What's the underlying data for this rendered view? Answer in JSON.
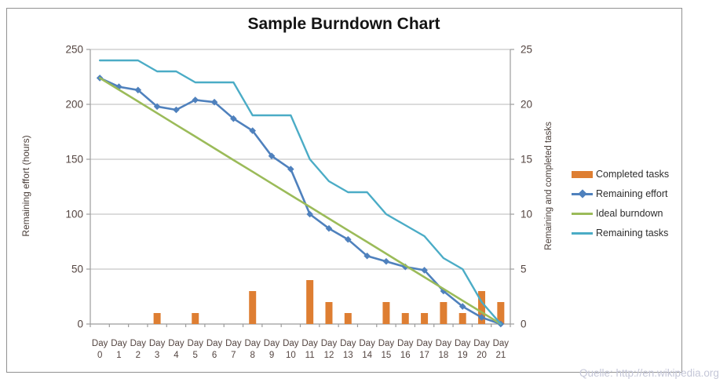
{
  "chart": {
    "title": "Sample Burndown Chart",
    "left_axis": {
      "title": "Remaining effort (hours)",
      "ticks": [
        250,
        200,
        150,
        100,
        50,
        0
      ]
    },
    "right_axis": {
      "title": "Remaining and  completed tasks",
      "ticks": [
        25,
        20,
        15,
        10,
        5,
        0
      ]
    },
    "legend": [
      {
        "label": "Completed tasks",
        "type": "bar",
        "color": "#de7e32"
      },
      {
        "label": "Remaining effort",
        "type": "line-diamond",
        "color": "#4f81bd"
      },
      {
        "label": "Ideal burndown",
        "type": "line",
        "color": "#9bbb59"
      },
      {
        "label": "Remaining tasks",
        "type": "line",
        "color": "#4bacc6"
      }
    ],
    "watermark": "Quelle: http://en.wikipedia.org",
    "colors": {
      "bar_orange": "#de7e32",
      "effort_blue": "#4f81bd",
      "ideal_green": "#9bbb59",
      "tasks_teal": "#4bacc6",
      "gridline": "#c8c8c8",
      "axis_line": "#9c9c9c",
      "tick_text": "#544541",
      "frame_border": "#919191",
      "watermark_text": "#c5c7d8"
    }
  },
  "chart_data": {
    "type": "combo",
    "title": "Sample Burndown Chart",
    "categories": [
      "Day 0",
      "Day 1",
      "Day 2",
      "Day 3",
      "Day 4",
      "Day 5",
      "Day 6",
      "Day 7",
      "Day 8",
      "Day 9",
      "Day 10",
      "Day 11",
      "Day 12",
      "Day 13",
      "Day 14",
      "Day 15",
      "Day 16",
      "Day 17",
      "Day 18",
      "Day 19",
      "Day 20",
      "Day 21"
    ],
    "left_axis_label": "Remaining effort (hours)",
    "right_axis_label": "Remaining and  completed tasks",
    "left_ylim": [
      0,
      250
    ],
    "right_ylim": [
      0,
      25
    ],
    "grid": "horizontal",
    "legend_position": "right",
    "series": [
      {
        "name": "Completed tasks",
        "type": "bar",
        "axis": "right",
        "color": "#de7e32",
        "values": [
          0,
          0,
          0,
          1,
          0,
          1,
          0,
          0,
          3,
          0,
          0,
          4,
          2,
          1,
          0,
          2,
          1,
          1,
          2,
          1,
          3,
          2
        ]
      },
      {
        "name": "Remaining effort",
        "type": "line",
        "marker": "diamond",
        "axis": "left",
        "color": "#4f81bd",
        "values": [
          224,
          216,
          213,
          198,
          195,
          204,
          202,
          187,
          176,
          153,
          141,
          100,
          87,
          77,
          62,
          57,
          52,
          49,
          30,
          16,
          6,
          0
        ]
      },
      {
        "name": "Ideal burndown",
        "type": "line",
        "axis": "left",
        "color": "#9bbb59",
        "values": [
          224,
          213.3,
          202.7,
          192,
          181.3,
          170.7,
          160,
          149.3,
          138.7,
          128,
          117.3,
          106.7,
          96,
          85.3,
          74.7,
          64,
          53.3,
          42.7,
          32,
          21.3,
          10.7,
          0
        ]
      },
      {
        "name": "Remaining tasks",
        "type": "line",
        "axis": "right",
        "color": "#4bacc6",
        "values": [
          24,
          24,
          24,
          23,
          23,
          22,
          22,
          22,
          19,
          19,
          19,
          15,
          13,
          12,
          12,
          10,
          9,
          8,
          6,
          5,
          2,
          0
        ]
      }
    ]
  }
}
